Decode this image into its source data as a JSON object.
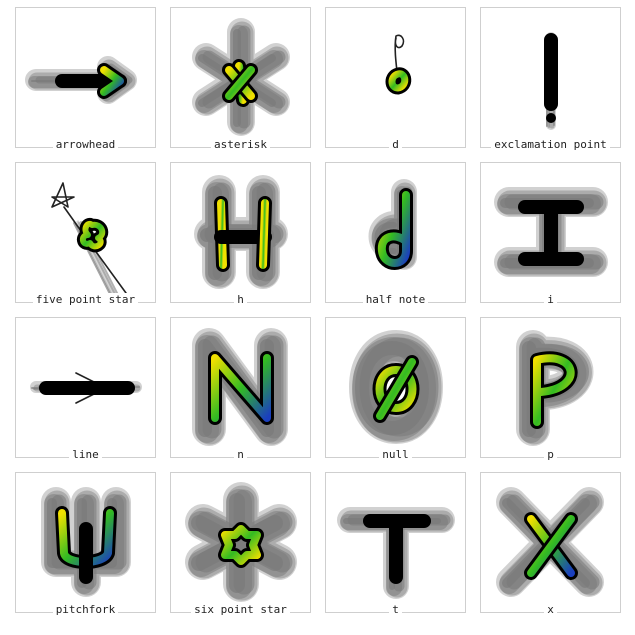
{
  "gallery": {
    "items": [
      {
        "label": "arrowhead",
        "icon": "arrowhead-glyph"
      },
      {
        "label": "asterisk",
        "icon": "asterisk-glyph"
      },
      {
        "label": "d",
        "icon": "d-glyph"
      },
      {
        "label": "exclamation point",
        "icon": "exclamation-point-glyph"
      },
      {
        "label": "five point star",
        "icon": "five-point-star-glyph"
      },
      {
        "label": "h",
        "icon": "h-glyph"
      },
      {
        "label": "half note",
        "icon": "half-note-glyph"
      },
      {
        "label": "i",
        "icon": "i-glyph"
      },
      {
        "label": "line",
        "icon": "line-glyph"
      },
      {
        "label": "n",
        "icon": "n-glyph"
      },
      {
        "label": "null",
        "icon": "null-glyph"
      },
      {
        "label": "p",
        "icon": "p-glyph"
      },
      {
        "label": "pitchfork",
        "icon": "pitchfork-glyph"
      },
      {
        "label": "six point star",
        "icon": "six-point-star-glyph"
      },
      {
        "label": "t",
        "icon": "t-glyph"
      },
      {
        "label": "x",
        "icon": "x-glyph"
      }
    ]
  },
  "colors": {
    "card_border": "#cfcfcf",
    "noise_gray": "#7a7a7a",
    "stroke_outline": "#000000",
    "gradient_start": "#f0e000",
    "gradient_mid": "#33bb22",
    "gradient_end": "#1a3fbf",
    "accent_red": "#e03a1a"
  }
}
